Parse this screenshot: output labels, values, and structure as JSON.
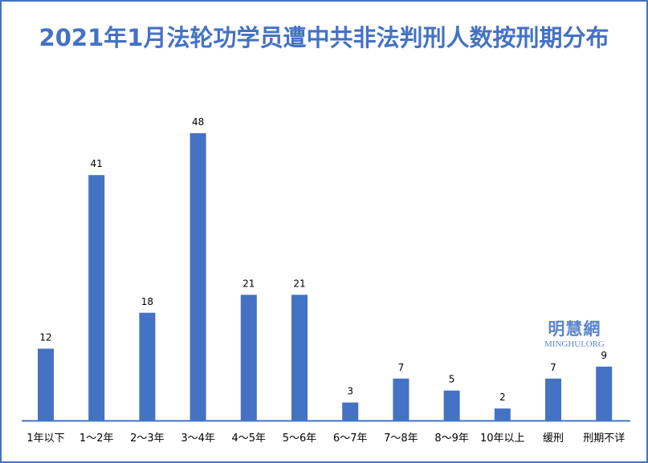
{
  "chart_data": {
    "type": "bar",
    "title": "2021年1月法轮功学员遭中共非法判刑人数按刑期分布",
    "categories": [
      "1年以下",
      "1～2年",
      "2～3年",
      "3～4年",
      "4～5年",
      "5～6年",
      "6～7年",
      "7～8年",
      "8～9年",
      "10年以上",
      "缓刑",
      "刑期不详"
    ],
    "values": [
      12,
      41,
      18,
      48,
      21,
      21,
      3,
      7,
      5,
      2,
      7,
      9
    ],
    "xlabel": "",
    "ylabel": "",
    "ylim": [
      0,
      48
    ],
    "grid": false,
    "legend": "none",
    "data_labels": true,
    "colors": {
      "bar": "#4472c4",
      "axis": "#4472c4",
      "title": "#4472c4",
      "border": "#4472c4"
    }
  },
  "watermark": {
    "chinese": "明慧網",
    "english": "MINGHUI.ORG"
  }
}
